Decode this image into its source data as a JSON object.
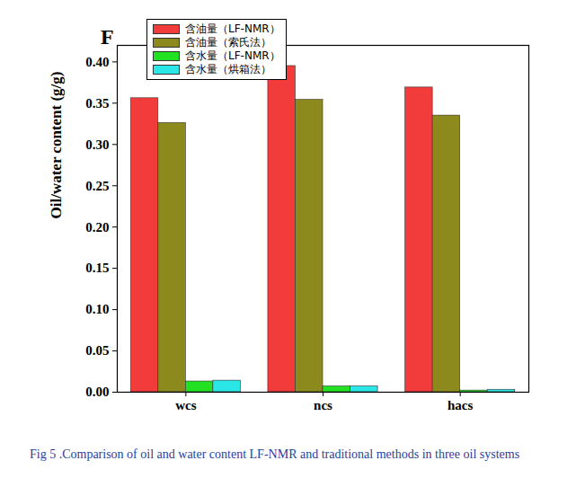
{
  "chart_data": {
    "type": "bar",
    "title": "F",
    "y_label": "Oil/water content (g/g)",
    "caption": "Fig 5 .Comparison of oil and water content LF-NMR and traditional methods in three oil systems",
    "categories": [
      "wcs",
      "ncs",
      "hacs"
    ],
    "series": [
      {
        "name": "含油量（LF-NMR）",
        "color": "#f23b3b",
        "values": [
          0.356,
          0.395,
          0.369
        ]
      },
      {
        "name": "含油量（索氏法）",
        "color": "#8c8a1c",
        "values": [
          0.326,
          0.354,
          0.335
        ]
      },
      {
        "name": "含水量（LF-NMR）",
        "color": "#22e022",
        "values": [
          0.013,
          0.007,
          0.002
        ]
      },
      {
        "name": "含水量（烘箱法）",
        "color": "#2ae6e6",
        "values": [
          0.014,
          0.007,
          0.003
        ]
      }
    ],
    "ylim": [
      0,
      0.42
    ],
    "yticks": [
      {
        "value": 0,
        "label": "0.00"
      },
      {
        "value": 0.05,
        "label": "0.05"
      },
      {
        "value": 0.1,
        "label": "0.10"
      },
      {
        "value": 0.15,
        "label": "0.15"
      },
      {
        "value": 0.2,
        "label": "0.20"
      },
      {
        "value": 0.25,
        "label": "0.25"
      },
      {
        "value": 0.3,
        "label": "0.30"
      },
      {
        "value": 0.35,
        "label": "0.35"
      },
      {
        "value": 0.4,
        "label": "0.40"
      }
    ],
    "legend": "upper left"
  }
}
